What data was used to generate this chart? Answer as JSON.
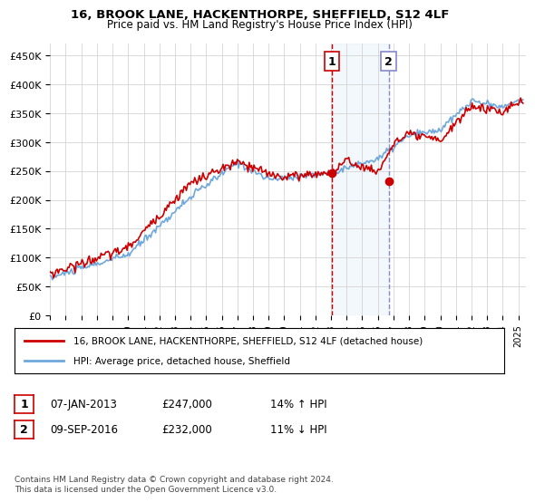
{
  "title": "16, BROOK LANE, HACKENTHORPE, SHEFFIELD, S12 4LF",
  "subtitle": "Price paid vs. HM Land Registry's House Price Index (HPI)",
  "ylabel": "",
  "xlim_start": 1995.0,
  "xlim_end": 2025.5,
  "ylim_min": 0,
  "ylim_max": 470000,
  "yticks": [
    0,
    50000,
    100000,
    150000,
    200000,
    250000,
    300000,
    350000,
    400000,
    450000
  ],
  "ytick_labels": [
    "£0",
    "£50K",
    "£100K",
    "£150K",
    "£200K",
    "£250K",
    "£300K",
    "£350K",
    "£400K",
    "£450K"
  ],
  "xtick_years": [
    1995,
    1996,
    1997,
    1998,
    1999,
    2000,
    2001,
    2002,
    2003,
    2004,
    2005,
    2006,
    2007,
    2008,
    2009,
    2010,
    2011,
    2012,
    2013,
    2014,
    2015,
    2016,
    2017,
    2018,
    2019,
    2020,
    2021,
    2022,
    2023,
    2024,
    2025
  ],
  "hpi_color": "#6fa8dc",
  "price_color": "#cc0000",
  "sale1_x": 2013.04,
  "sale1_y": 247000,
  "sale2_x": 2016.69,
  "sale2_y": 232000,
  "sale1_label": "1",
  "sale2_label": "2",
  "vline1_color": "#cc0000",
  "vline2_color": "#8888cc",
  "shade_color": "#d0e4f7",
  "legend_line1": "16, BROOK LANE, HACKENTHORPE, SHEFFIELD, S12 4LF (detached house)",
  "legend_line2": "HPI: Average price, detached house, Sheffield",
  "table_row1": [
    "1",
    "07-JAN-2013",
    "£247,000",
    "14% ↑ HPI"
  ],
  "table_row2": [
    "2",
    "09-SEP-2016",
    "£232,000",
    "11% ↓ HPI"
  ],
  "footer": "Contains HM Land Registry data © Crown copyright and database right 2024.\nThis data is licensed under the Open Government Licence v3.0.",
  "background_color": "#ffffff"
}
